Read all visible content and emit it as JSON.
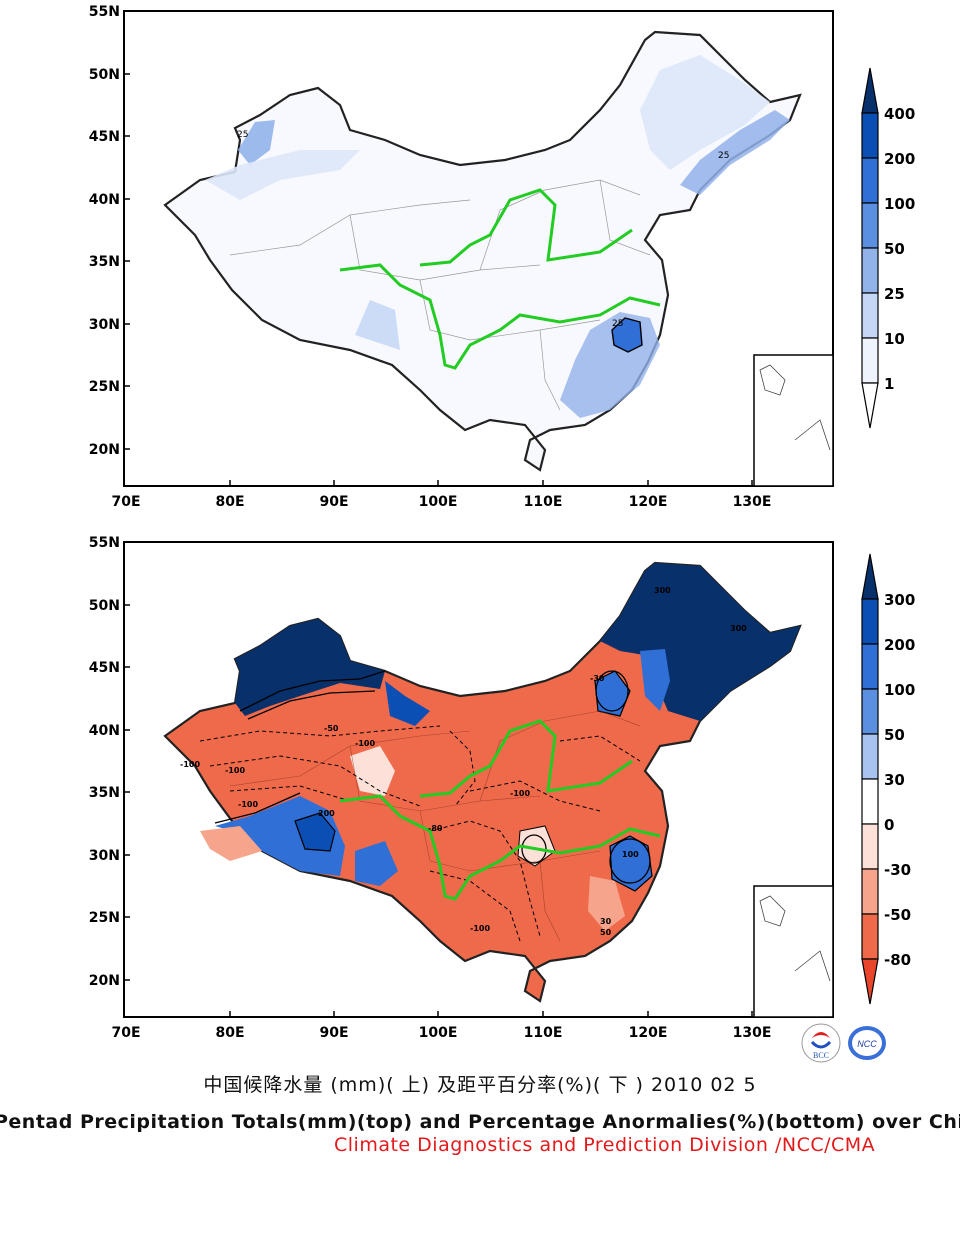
{
  "top_panel": {
    "y_ticks": [
      "55N",
      "50N",
      "45N",
      "40N",
      "35N",
      "30N",
      "25N",
      "20N"
    ],
    "x_ticks": [
      "70E",
      "80E",
      "90E",
      "100E",
      "110E",
      "120E",
      "130E"
    ],
    "contour_labels": [
      "25",
      "25",
      "25"
    ],
    "colorbar": {
      "labels": [
        "400",
        "200",
        "100",
        "50",
        "25",
        "10",
        "1"
      ],
      "colors": [
        "#08306b",
        "#0b4fb4",
        "#2f6fd6",
        "#5b8fe0",
        "#92b2ea",
        "#c6d7f5",
        "#ffffff"
      ]
    }
  },
  "bottom_panel": {
    "y_ticks": [
      "55N",
      "50N",
      "45N",
      "40N",
      "35N",
      "30N",
      "25N",
      "20N"
    ],
    "x_ticks": [
      "70E",
      "80E",
      "90E",
      "100E",
      "110E",
      "120E",
      "130E"
    ],
    "contour_labels": [
      "300",
      "300",
      "-100",
      "-100",
      "-100",
      "-100",
      "-100",
      "-100",
      "-80",
      "-50",
      "-30",
      "100",
      "200",
      "50",
      "30"
    ],
    "colorbar": {
      "labels": [
        "300",
        "200",
        "100",
        "50",
        "30",
        "0",
        "-30",
        "-50",
        "-80"
      ],
      "colors": [
        "#08306b",
        "#0b4fb4",
        "#2f6fd6",
        "#5b8fe0",
        "#a9c3f0",
        "#ffffff",
        "#fde1d8",
        "#f6a48c",
        "#ef6a4a",
        "#e8452a"
      ]
    }
  },
  "caption_cn": "中国候降水量 (mm)( 上) 及距平百分率(%)( 下 ) 2010 02 5",
  "caption_en": "Pentad Precipitation Totals(mm)(top) and Percentage Anormalies(%)(bottom) over China",
  "caption_division": "Climate Diagnostics and Prediction Division /NCC/CMA",
  "logos": [
    "BCC",
    "NCC"
  ]
}
